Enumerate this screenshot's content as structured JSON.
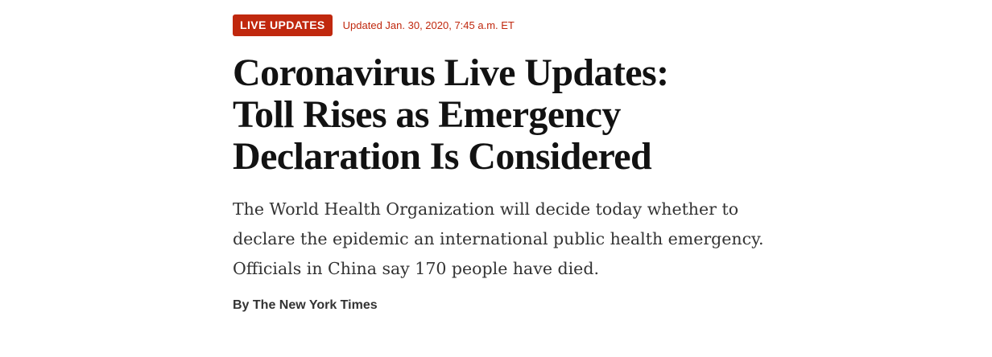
{
  "article": {
    "badge_label": "LIVE UPDATES",
    "updated": "Updated Jan. 30, 2020, 7:45 a.m. ET",
    "headline_lines": [
      "Coronavirus Live Updates:",
      "Toll Rises as Emergency",
      "Declaration Is Considered"
    ],
    "summary_lines": [
      "The World Health Organization will decide today whether to",
      "declare the epidemic an international public health emergency.",
      "Officials in China say 170 people have died."
    ],
    "byline": "By The New York Times"
  },
  "colors": {
    "accent": "#c0280e",
    "headline": "#121212",
    "body": "#333333"
  }
}
